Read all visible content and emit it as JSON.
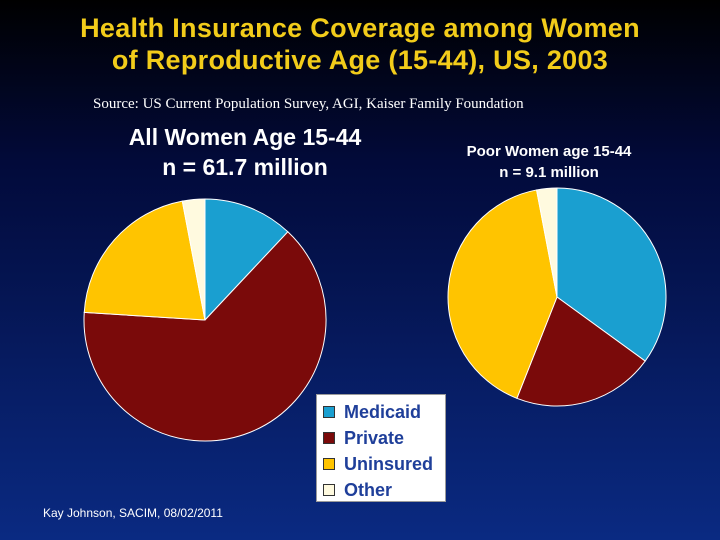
{
  "slide": {
    "title_line1": "Health Insurance Coverage among Women",
    "title_line2": "of Reproductive Age (15-44), US, 2003",
    "source": "Source: US Current Population Survey, AGI, Kaiser Family Foundation",
    "footer": "Kay Johnson, SACIM, 08/02/2011"
  },
  "colors": {
    "medicaid": "#1a9fd0",
    "private": "#7a0a0a",
    "uninsured": "#ffc400",
    "other": "#fffadf",
    "title": "#f2cc1a"
  },
  "chart_data": [
    {
      "type": "pie",
      "title_line1": "All Women Age 15-44",
      "title_line2": "n = 61.7 million",
      "categories": [
        "Medicaid",
        "Private",
        "Uninsured",
        "Other"
      ],
      "values": [
        12,
        64,
        21,
        3
      ]
    },
    {
      "type": "pie",
      "title_line1": "Poor Women age 15-44",
      "title_line2": "n = 9.1 million",
      "categories": [
        "Medicaid",
        "Private",
        "Uninsured",
        "Other"
      ],
      "values": [
        35,
        21,
        41,
        3
      ]
    }
  ],
  "legend": {
    "placement": "bottom-center",
    "items": [
      "Medicaid",
      "Private",
      "Uninsured",
      "Other"
    ]
  }
}
